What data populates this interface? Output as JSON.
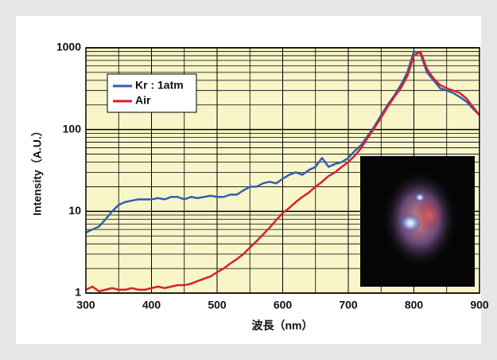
{
  "chart_data": {
    "type": "line",
    "x_label": "波長（nm）",
    "y_label": "Intensity（A.U.）",
    "x": [
      300,
      310,
      320,
      330,
      340,
      350,
      360,
      370,
      380,
      390,
      400,
      410,
      420,
      430,
      440,
      450,
      460,
      470,
      480,
      490,
      500,
      510,
      520,
      530,
      540,
      550,
      560,
      570,
      580,
      590,
      600,
      610,
      620,
      630,
      640,
      650,
      660,
      670,
      680,
      690,
      700,
      710,
      720,
      730,
      740,
      750,
      760,
      770,
      780,
      790,
      800,
      810,
      820,
      830,
      840,
      850,
      860,
      870,
      880,
      890,
      900
    ],
    "series": [
      {
        "name": "Kr : 1atm",
        "color": "#2f5fb0",
        "values": [
          5.5,
          6,
          6.5,
          8,
          10,
          12,
          13,
          13.5,
          14,
          14,
          14,
          14.5,
          14,
          15,
          15,
          14,
          15,
          14.5,
          15,
          15.5,
          15,
          15,
          16,
          16,
          18,
          20,
          20,
          22,
          23,
          22,
          25,
          28,
          30,
          28,
          32,
          35,
          45,
          35,
          38,
          40,
          45,
          55,
          65,
          85,
          110,
          150,
          200,
          260,
          350,
          500,
          900,
          850,
          500,
          400,
          320,
          300,
          280,
          250,
          220,
          180,
          150
        ]
      },
      {
        "name": "Air",
        "color": "#d9202a",
        "values": [
          1.1,
          1.2,
          1.05,
          1.1,
          1.15,
          1.1,
          1.1,
          1.15,
          1.1,
          1.1,
          1.15,
          1.2,
          1.15,
          1.2,
          1.25,
          1.25,
          1.3,
          1.4,
          1.5,
          1.6,
          1.8,
          2,
          2.3,
          2.6,
          3,
          3.6,
          4.3,
          5.2,
          6.3,
          7.8,
          9.5,
          11,
          13,
          15,
          17,
          20,
          23,
          27,
          30,
          35,
          40,
          48,
          60,
          80,
          105,
          140,
          190,
          250,
          320,
          450,
          800,
          900,
          550,
          420,
          350,
          320,
          300,
          280,
          240,
          190,
          150
        ]
      }
    ],
    "xlim": [
      300,
      900
    ],
    "xticks": [
      300,
      400,
      500,
      600,
      700,
      800,
      900
    ],
    "xminor": [
      350,
      450,
      550,
      650,
      750,
      850
    ],
    "ylim": [
      1,
      1000
    ],
    "yticks": [
      1,
      10,
      100,
      1000
    ],
    "yminor": [
      2,
      3,
      4,
      5,
      6,
      7,
      8,
      9,
      20,
      30,
      40,
      50,
      60,
      70,
      80,
      90,
      200,
      300,
      400,
      500,
      600,
      700,
      800,
      900
    ],
    "log_y": true,
    "grid": true,
    "legend": "upper-left"
  }
}
